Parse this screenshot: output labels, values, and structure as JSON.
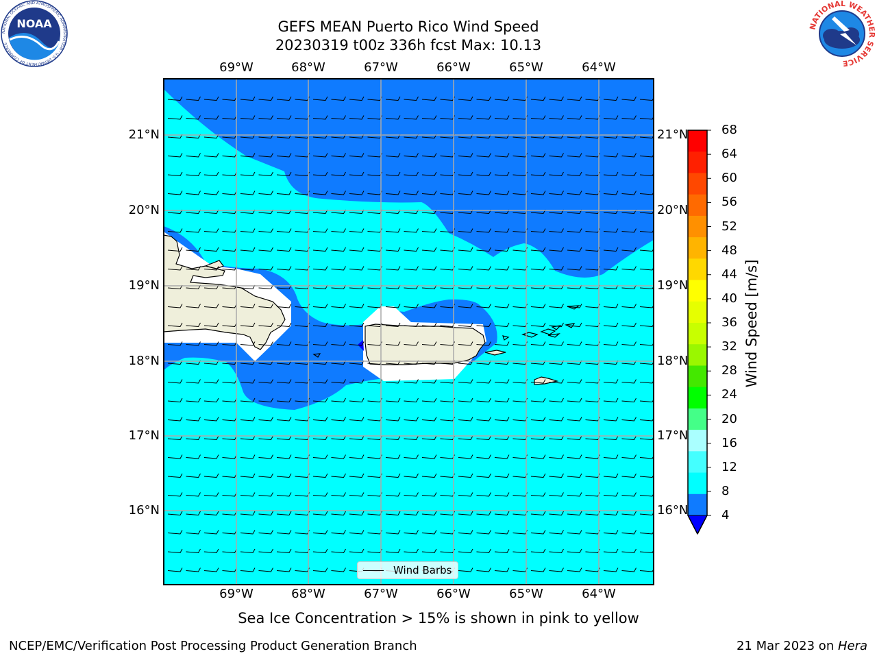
{
  "header": {
    "title_line1": "GEFS MEAN Puerto Rico Wind Speed",
    "title_line2": "20230319 t00z 336h fcst   Max: 10.13"
  },
  "logos": {
    "noaa": {
      "text": "NOAA",
      "ring_text": "NATIONAL OCEANIC AND ATMOSPHERIC ADMINISTRATION · U.S. DEPARTMENT OF COMMERCE"
    },
    "nws": {
      "ring_text": "NATIONAL WEATHER SERVICE"
    }
  },
  "map": {
    "lon_labels": [
      "69°W",
      "68°W",
      "67°W",
      "66°W",
      "65°W",
      "64°W"
    ],
    "lat_labels": [
      "21°N",
      "20°N",
      "19°N",
      "18°N",
      "17°N",
      "16°N"
    ],
    "colors": {
      "band_4_8": "#0f7bff",
      "band_8_12": "#00ffff",
      "land": "#efefdb",
      "low_speed": "#ffffff"
    },
    "legend_label": "Wind Barbs"
  },
  "colorbar": {
    "title": "Wind Speed [m/s]",
    "ticks": [
      "68",
      "64",
      "60",
      "56",
      "52",
      "48",
      "44",
      "40",
      "36",
      "32",
      "28",
      "24",
      "20",
      "16",
      "12",
      "8",
      "4"
    ],
    "colors": [
      "#ff0000",
      "#ff2000",
      "#ff4800",
      "#ff6a00",
      "#ff9000",
      "#ffb400",
      "#ffd800",
      "#ffff00",
      "#e6ff00",
      "#c8ff00",
      "#9af700",
      "#44e800",
      "#00ff00",
      "#44ff88",
      "#aaffff",
      "#44ffff",
      "#00ffff",
      "#0f7bff"
    ],
    "extend_color": "#0000ff"
  },
  "caption": "Sea Ice Concentration > 15% is shown in pink to yellow",
  "footer": {
    "left": "NCEP/EMC/Verification Post Processing Product Generation Branch",
    "right_prefix": "21 Mar 2023 on ",
    "right_italic": "Hera"
  }
}
